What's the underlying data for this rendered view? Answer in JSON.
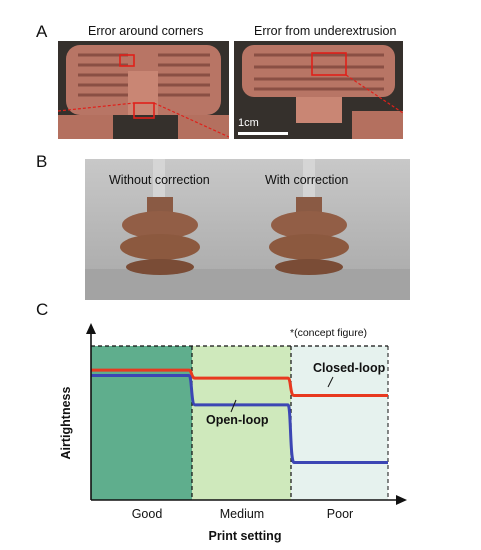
{
  "panel_a": {
    "letter": "A",
    "left_caption": "Error around corners",
    "right_caption": "Error from underextrusion",
    "scale_bar_label": "1cm"
  },
  "panel_b": {
    "letter": "B",
    "left_label": "Without correction",
    "right_label": "With correction"
  },
  "panel_c": {
    "letter": "C",
    "note": "*(concept figure)",
    "colors": {
      "good_zone": "#5fae8d",
      "medium_zone": "#cfe9bc",
      "poor_zone": "#e6f2ee",
      "closed_loop": "#e8391f",
      "open_loop": "#3c46b4"
    }
  },
  "chart_data": {
    "type": "line",
    "title": "",
    "xlabel": "Print setting",
    "ylabel": "Airtightness",
    "categories": [
      "Good",
      "Medium",
      "Poor"
    ],
    "series": [
      {
        "name": "Closed-loop",
        "values": [
          0.97,
          0.91,
          0.78
        ]
      },
      {
        "name": "Open-loop",
        "values": [
          0.93,
          0.71,
          0.28
        ]
      }
    ],
    "ylim": [
      0,
      1.15
    ],
    "annotations": [
      "*(concept figure)"
    ],
    "grid": false
  }
}
